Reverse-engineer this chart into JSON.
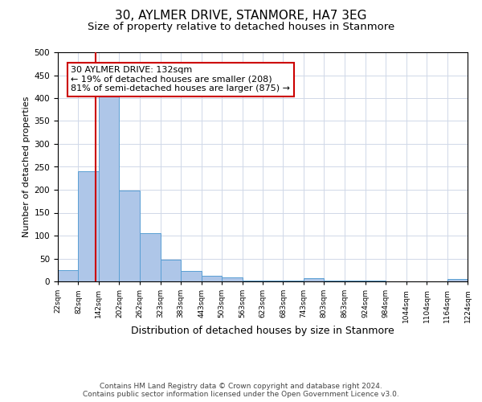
{
  "title1": "30, AYLMER DRIVE, STANMORE, HA7 3EG",
  "title2": "Size of property relative to detached houses in Stanmore",
  "xlabel": "Distribution of detached houses by size in Stanmore",
  "ylabel": "Number of detached properties",
  "bar_edges": [
    22,
    82,
    142,
    202,
    262,
    323,
    383,
    443,
    503,
    563,
    623,
    683,
    743,
    803,
    863,
    924,
    984,
    1044,
    1104,
    1164,
    1224
  ],
  "bar_heights": [
    25,
    240,
    405,
    198,
    105,
    48,
    22,
    12,
    8,
    2,
    2,
    2,
    7,
    2,
    2,
    2,
    0,
    0,
    0,
    5
  ],
  "bar_color": "#aec6e8",
  "bar_edge_color": "#5a9fd4",
  "property_line_x": 132,
  "property_line_color": "#cc0000",
  "annotation_text": "30 AYLMER DRIVE: 132sqm\n← 19% of detached houses are smaller (208)\n81% of semi-detached houses are larger (875) →",
  "annotation_box_color": "#ffffff",
  "annotation_box_edge_color": "#cc0000",
  "ylim": [
    0,
    500
  ],
  "xlim": [
    22,
    1224
  ],
  "tick_labels": [
    "22sqm",
    "82sqm",
    "142sqm",
    "202sqm",
    "262sqm",
    "323sqm",
    "383sqm",
    "443sqm",
    "503sqm",
    "563sqm",
    "623sqm",
    "683sqm",
    "743sqm",
    "803sqm",
    "863sqm",
    "924sqm",
    "984sqm",
    "1044sqm",
    "1104sqm",
    "1164sqm",
    "1224sqm"
  ],
  "footer_text": "Contains HM Land Registry data © Crown copyright and database right 2024.\nContains public sector information licensed under the Open Government Licence v3.0.",
  "background_color": "#ffffff",
  "grid_color": "#d0d8e8",
  "title1_fontsize": 11,
  "title2_fontsize": 9.5,
  "xlabel_fontsize": 9,
  "ylabel_fontsize": 8,
  "annotation_fontsize": 8,
  "footer_fontsize": 6.5,
  "yticks": [
    0,
    50,
    100,
    150,
    200,
    250,
    300,
    350,
    400,
    450,
    500
  ]
}
